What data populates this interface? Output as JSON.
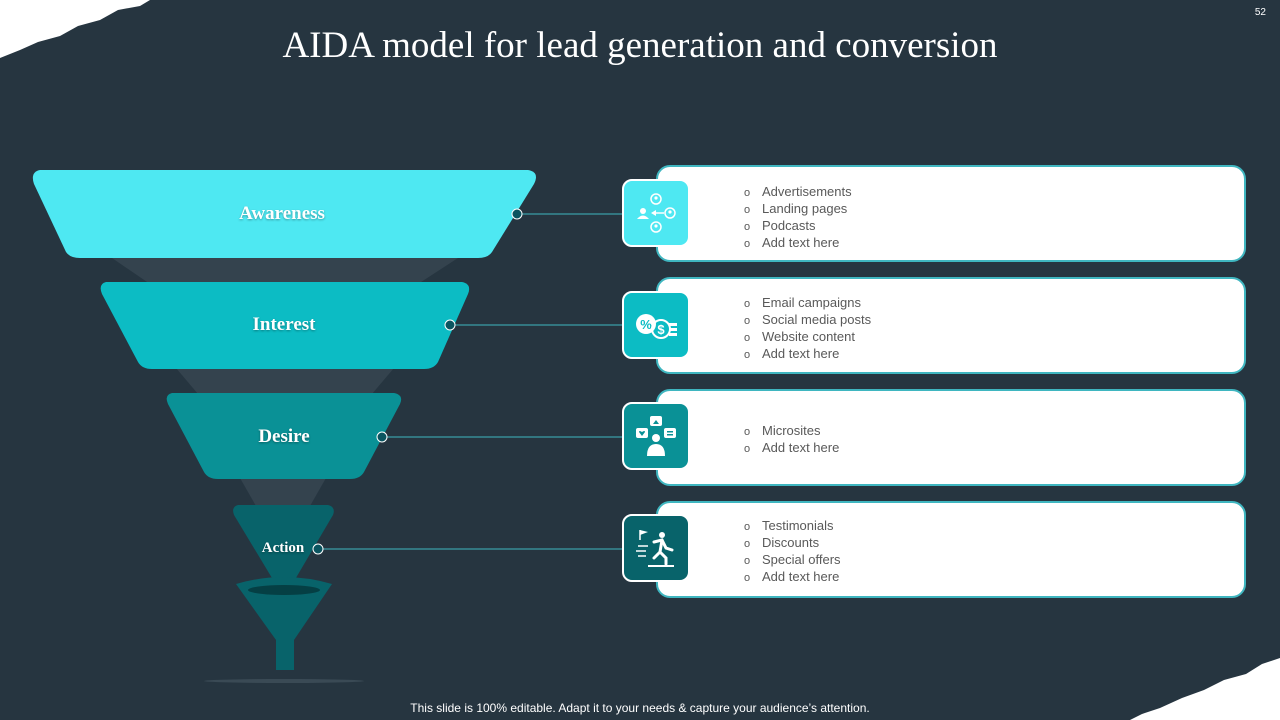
{
  "slide": {
    "number": "52",
    "title": "AIDA model for lead generation and conversion",
    "footer": "This slide is 100% editable. Adapt it to your needs & capture your audience’s attention."
  },
  "colors": {
    "background": "#263540",
    "awareness": "#4ee8f2",
    "interest": "#0cbcc4",
    "desire": "#0a9196",
    "action": "#08636a",
    "card_border": "#3fb6c0",
    "card_text": "#595959"
  },
  "stages": [
    {
      "label": "Awareness",
      "icon": "network-people-icon",
      "items": [
        "Advertisements",
        "Landing  pages",
        "Podcasts",
        "Add text here"
      ]
    },
    {
      "label": "Interest",
      "icon": "money-percent-icon",
      "items": [
        "Email campaigns",
        "Social media posts",
        "Website content",
        "Add text here"
      ]
    },
    {
      "label": "Desire",
      "icon": "social-media-person-icon",
      "items": [
        "Microsites",
        "Add text here"
      ]
    },
    {
      "label": "Action",
      "icon": "running-to-flag-icon",
      "items": [
        "Testimonials",
        "Discounts",
        "Special offers",
        "Add text here"
      ]
    }
  ]
}
